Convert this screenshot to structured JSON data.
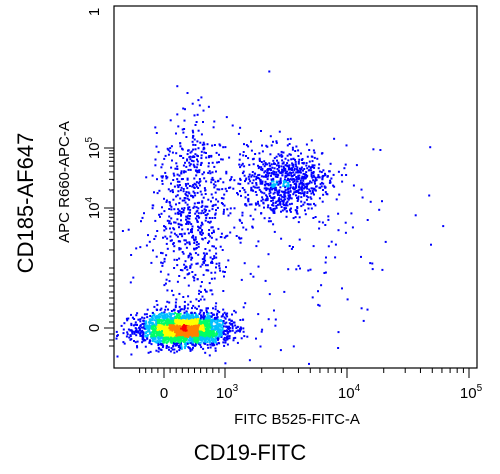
{
  "figure": {
    "outer_xlabel": "CD19-FITC",
    "outer_ylabel": "CD185-AF647"
  },
  "chart_data": {
    "type": "scatter",
    "style": "density-dot-plot",
    "xlabel": "FITC B525-FITC-A",
    "ylabel": "APC R660-APC-A",
    "x_scale": "biexponential",
    "y_scale": "biexponential",
    "xlim": [
      -400,
      100000
    ],
    "ylim": [
      -300,
      100000
    ],
    "x_ticks": [
      {
        "value": 0,
        "label": "0"
      },
      {
        "value": 1000,
        "label": "10",
        "exp": "3"
      },
      {
        "value": 10000,
        "label": "10",
        "exp": "4"
      },
      {
        "value": 100000,
        "label": "10",
        "exp": "5"
      }
    ],
    "y_ticks": [
      {
        "value": 0,
        "label": "0"
      },
      {
        "value": 10000,
        "label": "10",
        "exp": "4"
      },
      {
        "value": 100000,
        "label": "10",
        "exp": "5"
      }
    ],
    "grid": false,
    "density_colors": [
      "#0000ff",
      "#00bfff",
      "#00ff66",
      "#ffff00",
      "#ff8000",
      "#ff0000"
    ],
    "populations": [
      {
        "x_center": 300,
        "y_center": 0,
        "x_spread": 250,
        "y_spread": 120,
        "points": 2600
      },
      {
        "x_center": 450,
        "y_center": 10000,
        "x_spread": 250,
        "y_spread": 7000,
        "points": 650
      },
      {
        "x_center": 3000,
        "y_center": 28000,
        "x_spread": 1400,
        "y_spread": 12000,
        "points": 750
      },
      {
        "x_center": 2000,
        "y_center": 3000,
        "x_spread": 2000,
        "y_spread": 3000,
        "points": 220
      }
    ]
  }
}
